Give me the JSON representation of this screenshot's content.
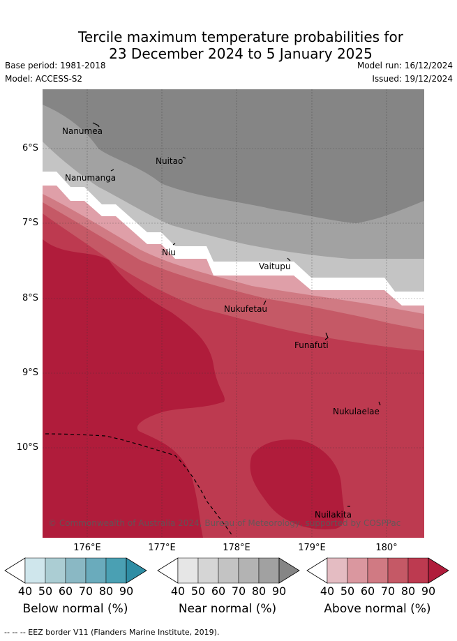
{
  "title_line1": "Tercile maximum temperature probabilities for",
  "title_line2": "23 December 2024 to 5 January 2025",
  "base_period": "Base period: 1981-2018",
  "model": "Model: ACCESS-S2",
  "model_run": "Model run: 16/12/2024",
  "issued": "Issued: 19/12/2024",
  "lat_labels": [
    "6°S",
    "7°S",
    "8°S",
    "9°S",
    "10°S"
  ],
  "lon_labels": [
    "176°E",
    "177°E",
    "178°E",
    "179°E",
    "180°"
  ],
  "places": [
    "Nanumea",
    "Nuitao",
    "Nanumanga",
    "Niu",
    "Vaitupu",
    "Nukufetau",
    "Funafuti",
    "Nukulaelae",
    "Nuilakita"
  ],
  "copyright": "© Commonwealth of Australia 2024, Bureau of Meteorology, supported by COSPPac",
  "colorbars": [
    {
      "label": "Below normal (%)",
      "ticks": [
        "40",
        "50",
        "60",
        "70",
        "80",
        "90"
      ],
      "colors": [
        "#ffffff",
        "#cfe6ec",
        "#abcdd3",
        "#8ab8c4",
        "#6aabbc",
        "#4aa0b3",
        "#2e8da4"
      ]
    },
    {
      "label": "Near normal (%)",
      "ticks": [
        "40",
        "50",
        "60",
        "70",
        "80",
        "90"
      ],
      "colors": [
        "#ffffff",
        "#e6e6e6",
        "#d5d5d5",
        "#c3c3c3",
        "#b3b3b3",
        "#a1a1a1",
        "#858585"
      ]
    },
    {
      "label": "Above normal (%)",
      "ticks": [
        "40",
        "50",
        "60",
        "70",
        "80",
        "90"
      ],
      "colors": [
        "#ffffff",
        "#e4bcc2",
        "#da979f",
        "#d07a83",
        "#c55966",
        "#bd3a50",
        "#b01c3b"
      ]
    }
  ],
  "legend_footer": "--  --  -- EEZ border V11 (Flanders Marine Institute, 2019)."
}
